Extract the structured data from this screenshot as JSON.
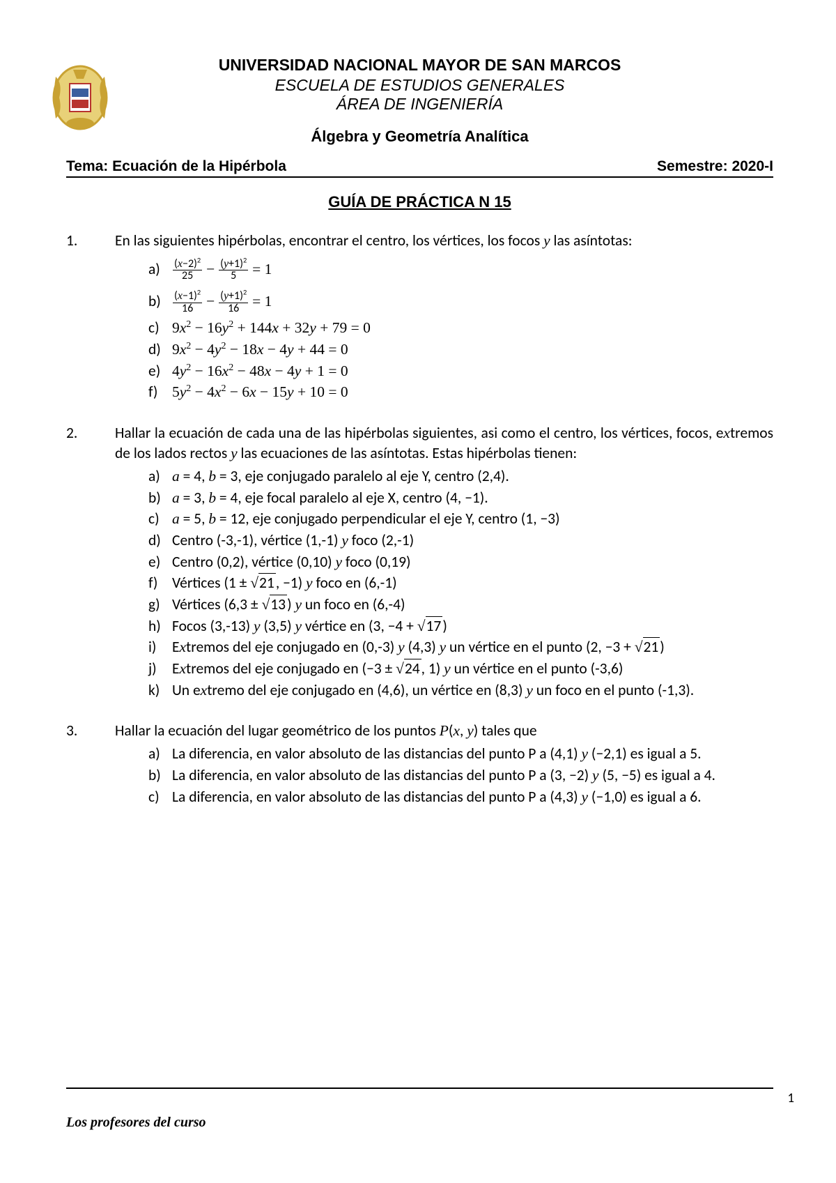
{
  "header": {
    "university": "UNIVERSIDAD NACIONAL MAYOR DE SAN MARCOS",
    "school": "ESCUELA DE ESTUDIOS GENERALES",
    "area": "ÁREA DE INGENIERÍA",
    "course": "Álgebra y Geometría Analítica",
    "topic_label": "Tema:",
    "topic": "Ecuación de la Hipérbola",
    "semester_label": "Semestre:",
    "semester": "2020-I",
    "guide_title": "GUÍA DE PRÁCTICA N 15"
  },
  "logo_colors": {
    "gold": "#c9a233",
    "red": "#b8342f",
    "blue": "#3a5f9e"
  },
  "problems": [
    {
      "num": "1.",
      "intro": "En las siguientes hipérbolas, encontrar el centro, los vértices, los focos y las asíntotas:",
      "subs": [
        {
          "l": "a)",
          "kind": "frac",
          "n1": "(x−2)²",
          "d1": "25",
          "n2": "(y+1)²",
          "d2": "5",
          "rhs": "= 1"
        },
        {
          "l": "b)",
          "kind": "frac",
          "n1": "(x−1)²",
          "d1": "16",
          "n2": "(y+1)²",
          "d2": "16",
          "rhs": "= 1"
        },
        {
          "l": "c)",
          "kind": "eq",
          "eq": "9x² − 16y² + 144x + 32y + 79 = 0"
        },
        {
          "l": "d)",
          "kind": "eq",
          "eq": "9x² − 4y² − 18x − 4y + 44 = 0"
        },
        {
          "l": "e)",
          "kind": "eq",
          "eq": "4y² − 16x² − 48x − 4y + 1 = 0"
        },
        {
          "l": "f)",
          "kind": "eq",
          "eq": "5y² − 4x² − 6x − 15y + 10 = 0"
        }
      ]
    },
    {
      "num": "2.",
      "intro": "Hallar la ecuación de cada una de las hipérbolas siguientes, asi como el centro, los vértices, focos, extremos de los lados rectos y las ecuaciones de las asíntotas. Estas hipérbolas tienen:",
      "subs": [
        {
          "l": "a)",
          "t": "𝑎 = 4, 𝑏 = 3, eje conjugado paralelo al eje Y, centro (2,4)."
        },
        {
          "l": "b)",
          "t": "𝑎 = 3, 𝑏 = 4, eje focal paralelo al eje X, centro (4, −1)."
        },
        {
          "l": "c)",
          "t": "𝑎 = 5, 𝑏 = 12, eje conjugado perpendicular el eje Y, centro (1, −3)"
        },
        {
          "l": "d)",
          "t": "Centro (-3,-1), vértice (1,-1) y foco (2,-1)"
        },
        {
          "l": "e)",
          "t": "Centro (0,2), vértice (0,10) y foco (0,19)"
        },
        {
          "l": "f)",
          "t": "Vértices (1 ± √21, −1) y foco en (6,-1)",
          "sqrt": "21",
          "pre": "Vértices (1 ± ",
          "post": ", −1) y foco en (6,-1)"
        },
        {
          "l": "g)",
          "t": "Vértices (6,3 ± √13) y un foco en (6,-4)",
          "sqrt": "13",
          "pre": "Vértices (6,3 ± ",
          "post": ") y un foco en (6,-4)"
        },
        {
          "l": "h)",
          "t": "Focos (3,-13) y (3,5) y vértice en (3, −4 + √17)",
          "sqrt": "17",
          "pre": "Focos (3,-13) y (3,5) y vértice en (3, −4 + ",
          "post": ")"
        },
        {
          "l": "i)",
          "t": "Extremos del eje conjugado en (0,-3) y (4,3) y un vértice en el punto (2, −3 + √21)",
          "sqrt": "21",
          "pre": "Extremos del eje conjugado en (0,-3) y (4,3) y un vértice en el punto (2, −3 + ",
          "post": ")",
          "bigparen": true
        },
        {
          "l": "j)",
          "t": "Extremos del eje conjugado en (−3 ± √24, 1) y un vértice en el punto (-3,6)",
          "sqrt": "24",
          "pre": "Extremos del eje conjugado en (−3 ± ",
          "post": ", 1) y un vértice en el punto (-3,6)"
        },
        {
          "l": "k)",
          "t": "Un extremo del eje conjugado en (4,6), un vértice en (8,3) y un foco en el punto (-1,3)."
        }
      ]
    },
    {
      "num": "3.",
      "intro": "Hallar la ecuación del lugar geométrico de los puntos 𝑃(𝑥, 𝑦) tales que",
      "subs": [
        {
          "l": "a)",
          "t": "La diferencia, en valor absoluto de las distancias del punto P a (4,1) y (−2,1) es igual a 5."
        },
        {
          "l": "b)",
          "t": "La diferencia, en valor absoluto de las distancias del punto P a (3, −2) y (5, −5) es igual a 4."
        },
        {
          "l": "c)",
          "t": "La diferencia, en valor absoluto de las distancias del punto P a (4,3) y (−1,0) es igual a 6."
        }
      ]
    }
  ],
  "footer": "Los profesores del curso",
  "page_number": "1"
}
